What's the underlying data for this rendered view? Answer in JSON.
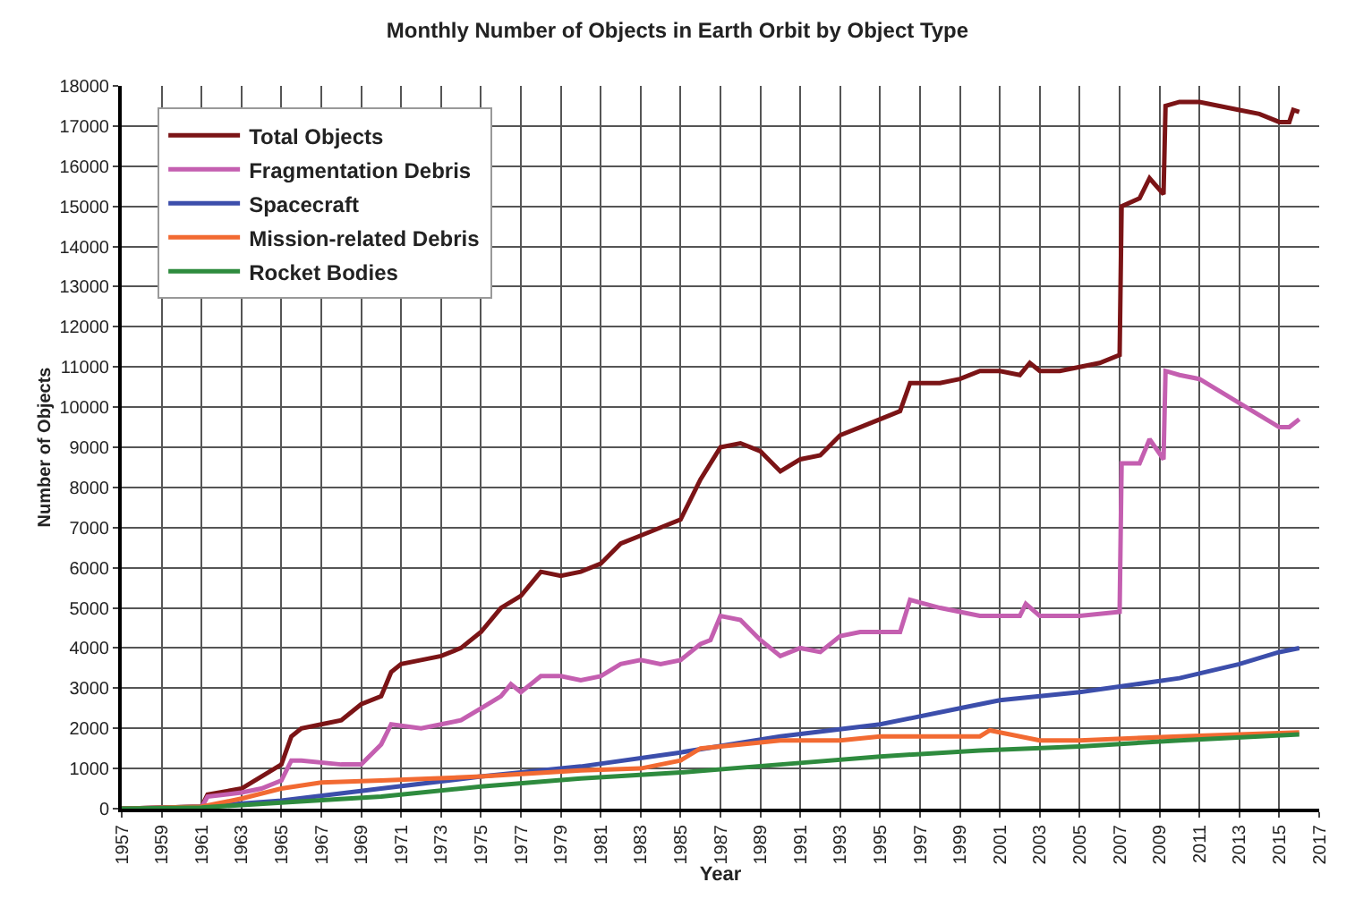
{
  "chart_data": {
    "type": "line",
    "title": "Monthly Number of Objects in Earth Orbit by Object Type",
    "xlabel": "Year",
    "ylabel": "Number of Objects",
    "xlim": [
      1957,
      2017
    ],
    "xticks": [
      1957,
      1959,
      1961,
      1963,
      1965,
      1967,
      1969,
      1971,
      1973,
      1975,
      1977,
      1979,
      1981,
      1983,
      1985,
      1987,
      1989,
      1991,
      1993,
      1995,
      1997,
      1999,
      2001,
      2003,
      2005,
      2007,
      2009,
      2011,
      2013,
      2015,
      2017
    ],
    "ylim": [
      0,
      18000
    ],
    "yticks": [
      0,
      1000,
      2000,
      3000,
      4000,
      5000,
      6000,
      7000,
      8000,
      9000,
      10000,
      11000,
      12000,
      13000,
      14000,
      15000,
      16000,
      17000,
      18000
    ],
    "grid": true,
    "legend": "top left",
    "marker": "none",
    "line_style": "solid",
    "series": [
      {
        "name": "Total Objects",
        "color": "#7b1416",
        "x": [
          1957,
          1961,
          1961.3,
          1963,
          1964,
          1965,
          1965.5,
          1966,
          1967,
          1968,
          1969,
          1970,
          1970.5,
          1971,
          1972,
          1973,
          1974,
          1975,
          1976,
          1977,
          1978,
          1979,
          1980,
          1981,
          1982,
          1983,
          1984,
          1985,
          1986,
          1987,
          1988,
          1989,
          1990,
          1991,
          1992,
          1993,
          1994,
          1995,
          1996,
          1996.5,
          1998,
          1999,
          2000,
          2001,
          2002,
          2002.5,
          2003,
          2004,
          2005,
          2006,
          2007,
          2007.1,
          2008,
          2008.5,
          2009.2,
          2009.3,
          2010,
          2011,
          2012,
          2013,
          2014,
          2015,
          2015.5,
          2015.7,
          2016
        ],
        "values": [
          0,
          50,
          350,
          500,
          800,
          1100,
          1800,
          2000,
          2100,
          2200,
          2600,
          2800,
          3400,
          3600,
          3700,
          3800,
          4000,
          4400,
          5000,
          5300,
          5900,
          5800,
          5900,
          6100,
          6600,
          6800,
          7000,
          7200,
          8200,
          9000,
          9100,
          8900,
          8400,
          8700,
          8800,
          9300,
          9500,
          9700,
          9900,
          10600,
          10600,
          10700,
          10900,
          10900,
          10800,
          11100,
          10900,
          10900,
          11000,
          11100,
          11300,
          15000,
          15200,
          15700,
          15300,
          17500,
          17600,
          17600,
          17500,
          17400,
          17300,
          17100,
          17100,
          17400,
          17350
        ]
      },
      {
        "name": "Fragmentation Debris",
        "color": "#c45fb0",
        "x": [
          1957,
          1961,
          1961.3,
          1963,
          1964,
          1965,
          1965.5,
          1966,
          1968,
          1969,
          1970,
          1970.5,
          1972,
          1973,
          1974,
          1975,
          1976,
          1976.5,
          1977,
          1978,
          1979,
          1980,
          1981,
          1982,
          1983,
          1984,
          1985,
          1986,
          1986.5,
          1987,
          1988,
          1989,
          1990,
          1991,
          1992,
          1993,
          1994,
          1996,
          1996.5,
          1998,
          2000,
          2001,
          2002,
          2002.3,
          2003,
          2005,
          2007,
          2007.1,
          2008,
          2008.5,
          2009.2,
          2009.3,
          2010,
          2011,
          2012,
          2013,
          2014,
          2015,
          2015.5,
          2016
        ],
        "values": [
          0,
          30,
          300,
          400,
          500,
          700,
          1200,
          1200,
          1100,
          1100,
          1600,
          2100,
          2000,
          2100,
          2200,
          2500,
          2800,
          3100,
          2900,
          3300,
          3300,
          3200,
          3300,
          3600,
          3700,
          3600,
          3700,
          4100,
          4200,
          4800,
          4700,
          4200,
          3800,
          4000,
          3900,
          4300,
          4400,
          4400,
          5200,
          5000,
          4800,
          4800,
          4800,
          5100,
          4800,
          4800,
          4900,
          8600,
          8600,
          9200,
          8700,
          10900,
          10800,
          10700,
          10400,
          10100,
          9800,
          9500,
          9500,
          9700
        ]
      },
      {
        "name": "Spacecraft",
        "color": "#3c4eab",
        "x": [
          1957,
          1961,
          1965,
          1970,
          1975,
          1980,
          1985,
          1990,
          1995,
          1999,
          2001,
          2005,
          2010,
          2013,
          2015,
          2016
        ],
        "values": [
          0,
          50,
          200,
          500,
          800,
          1050,
          1400,
          1800,
          2100,
          2500,
          2700,
          2900,
          3250,
          3600,
          3900,
          4000
        ]
      },
      {
        "name": "Mission-related Debris",
        "color": "#f26a32",
        "x": [
          1957,
          1961,
          1963,
          1965,
          1967,
          1970,
          1975,
          1980,
          1983,
          1985,
          1986,
          1990,
          1993,
          1995,
          2000,
          2000.5,
          2001,
          2003,
          2005,
          2010,
          2016
        ],
        "values": [
          0,
          50,
          250,
          500,
          650,
          700,
          800,
          950,
          1000,
          1200,
          1500,
          1700,
          1700,
          1800,
          1800,
          1950,
          1900,
          1700,
          1700,
          1800,
          1900
        ]
      },
      {
        "name": "Rocket Bodies",
        "color": "#2e8b3e",
        "x": [
          1957,
          1961,
          1965,
          1970,
          1975,
          1980,
          1985,
          1990,
          1995,
          2000,
          2005,
          2010,
          2016
        ],
        "values": [
          0,
          30,
          150,
          300,
          550,
          750,
          900,
          1100,
          1300,
          1450,
          1550,
          1700,
          1850
        ]
      }
    ]
  }
}
